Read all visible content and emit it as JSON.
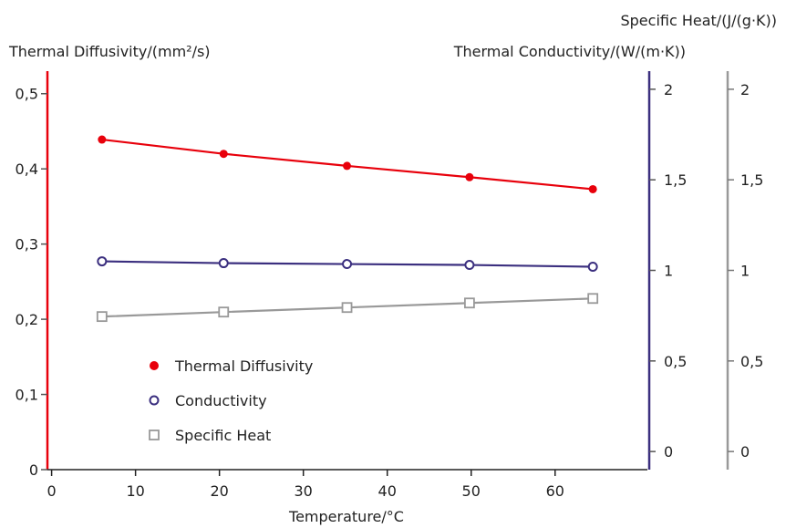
{
  "chart_data": {
    "type": "line",
    "x_axis": {
      "label": "Temperature/°C",
      "range": [
        -0.5,
        71
      ],
      "ticks": [
        0,
        10,
        20,
        30,
        40,
        50,
        60
      ],
      "tick_labels": [
        "0",
        "10",
        "20",
        "30",
        "40",
        "50",
        "60"
      ]
    },
    "y_axes": [
      {
        "id": "diffusivity",
        "label": "Thermal Diffusivity/(mm²/s)",
        "color": "#e8000b",
        "position": "left",
        "range": [
          0,
          0.53
        ],
        "ticks": [
          0,
          0.1,
          0.2,
          0.3,
          0.4,
          0.5
        ],
        "tick_labels": [
          "0",
          "0,1",
          "0,2",
          "0,3",
          "0,4",
          "0,5"
        ]
      },
      {
        "id": "conductivity",
        "label": "Thermal Conductivity/(W/(m·K))",
        "color": "#3b2f7f",
        "position": "right",
        "range": [
          -0.1,
          2.1
        ],
        "ticks": [
          0,
          0.5,
          1,
          1.5,
          2
        ],
        "tick_labels": [
          "0",
          "0,5",
          "1",
          "1,5",
          "2"
        ]
      },
      {
        "id": "specific_heat",
        "label": "Specific Heat/(J/(g·K))",
        "color": "#999999",
        "position": "far-right",
        "range": [
          -0.1,
          2.1
        ],
        "ticks": [
          0,
          0.5,
          1,
          1.5,
          2
        ],
        "tick_labels": [
          "0",
          "0,5",
          "1",
          "1,5",
          "2"
        ]
      }
    ],
    "series": [
      {
        "name": "Thermal Diffusivity",
        "axis": "diffusivity",
        "color": "#e8000b",
        "marker": "filled-circle",
        "x": [
          6,
          20.5,
          35.2,
          49.8,
          64.5
        ],
        "y": [
          0.439,
          0.42,
          0.404,
          0.389,
          0.373
        ]
      },
      {
        "name": "Conductivity",
        "axis": "conductivity",
        "color": "#3b2f7f",
        "marker": "open-circle",
        "x": [
          6,
          20.5,
          35.2,
          49.8,
          64.5
        ],
        "y": [
          1.05,
          1.04,
          1.035,
          1.03,
          1.02
        ]
      },
      {
        "name": "Specific Heat",
        "axis": "specific_heat",
        "color": "#999999",
        "marker": "open-square",
        "x": [
          6,
          20.5,
          35.2,
          49.8,
          64.5
        ],
        "y": [
          0.745,
          0.77,
          0.795,
          0.82,
          0.845
        ]
      }
    ],
    "legend": {
      "position": "lower-left"
    },
    "grid": false
  }
}
